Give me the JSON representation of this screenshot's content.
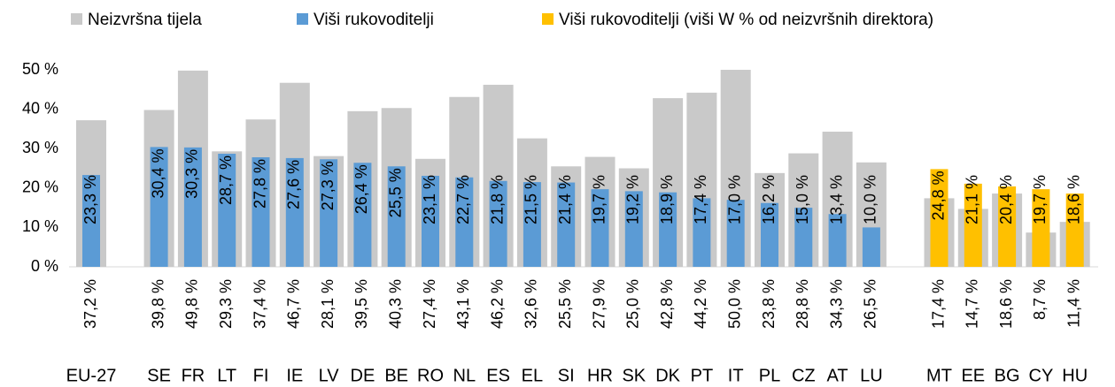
{
  "chart_data": {
    "type": "bar",
    "categories": [
      "EU-27",
      null,
      "SE",
      "FR",
      "LT",
      "FI",
      "IE",
      "LV",
      "DE",
      "BE",
      "RO",
      "NL",
      "ES",
      "EL",
      "SI",
      "HR",
      "SK",
      "DK",
      "PT",
      "IT",
      "PL",
      "CZ",
      "AT",
      "LU",
      null,
      "MT",
      "EE",
      "BG",
      "CY",
      "HU"
    ],
    "series": [
      {
        "name": "Neizvršna tijela",
        "color": "#c9c9c9",
        "values": [
          37.2,
          null,
          39.8,
          49.8,
          29.3,
          37.4,
          46.7,
          28.1,
          39.5,
          40.3,
          27.4,
          43.1,
          46.2,
          32.6,
          25.5,
          27.9,
          25.0,
          42.8,
          44.2,
          50.0,
          23.8,
          28.8,
          34.3,
          26.5,
          null,
          17.4,
          14.7,
          18.6,
          8.7,
          11.4
        ],
        "value_labels": [
          "37,2 %",
          null,
          "39,8 %",
          "49,8 %",
          "29,3 %",
          "37,4 %",
          "46,7 %",
          "28,1 %",
          "39,5 %",
          "40,3 %",
          "27,4 %",
          "43,1 %",
          "46,2 %",
          "32,6 %",
          "25,5 %",
          "27,9 %",
          "25,0 %",
          "42,8 %",
          "44,2 %",
          "50,0 %",
          "23,8 %",
          "28,8 %",
          "34,3 %",
          "26,5 %",
          null,
          "17,4 %",
          "14,7 %",
          "18,6 %",
          "8,7 %",
          "11,4 %"
        ]
      },
      {
        "name": "Viši rukovoditelji",
        "color": "#5b9bd5",
        "values": [
          23.3,
          null,
          30.4,
          30.3,
          28.7,
          27.8,
          27.6,
          27.3,
          26.4,
          25.5,
          23.1,
          22.7,
          21.8,
          21.5,
          21.4,
          19.7,
          19.2,
          18.9,
          17.4,
          17.0,
          16.2,
          15.0,
          13.4,
          10.0,
          null,
          null,
          null,
          null,
          null,
          null
        ],
        "value_labels": [
          "23,3 %",
          null,
          "30,4 %",
          "30,3 %",
          "28,7 %",
          "27,8 %",
          "27,6 %",
          "27,3 %",
          "26,4 %",
          "25,5 %",
          "23,1 %",
          "22,7 %",
          "21,8 %",
          "21,5 %",
          "21,4 %",
          "19,7 %",
          "19,2 %",
          "18,9 %",
          "17,4 %",
          "17,0 %",
          "16,2 %",
          "15,0 %",
          "13,4 %",
          "10,0 %",
          null,
          null,
          null,
          null,
          null,
          null
        ]
      },
      {
        "name": "Viši rukovoditelji (viši W % od neizvršnih direktora)",
        "color": "#ffc000",
        "values": [
          null,
          null,
          null,
          null,
          null,
          null,
          null,
          null,
          null,
          null,
          null,
          null,
          null,
          null,
          null,
          null,
          null,
          null,
          null,
          null,
          null,
          null,
          null,
          null,
          null,
          24.8,
          21.1,
          20.4,
          19.7,
          18.6
        ],
        "value_labels": [
          null,
          null,
          null,
          null,
          null,
          null,
          null,
          null,
          null,
          null,
          null,
          null,
          null,
          null,
          null,
          null,
          null,
          null,
          null,
          null,
          null,
          null,
          null,
          null,
          null,
          "24,8 %",
          "21,1 %",
          "20,4 %",
          "19,7 %",
          "18,6 %"
        ]
      }
    ],
    "ylim": [
      0,
      50
    ],
    "yticks": [
      {
        "value": 0,
        "label": "0 %"
      },
      {
        "value": 10,
        "label": "10 %"
      },
      {
        "value": 20,
        "label": "20 %"
      },
      {
        "value": 30,
        "label": "30 %"
      },
      {
        "value": 40,
        "label": "40 %"
      },
      {
        "value": 50,
        "label": "50 %"
      }
    ],
    "legend": "top"
  }
}
